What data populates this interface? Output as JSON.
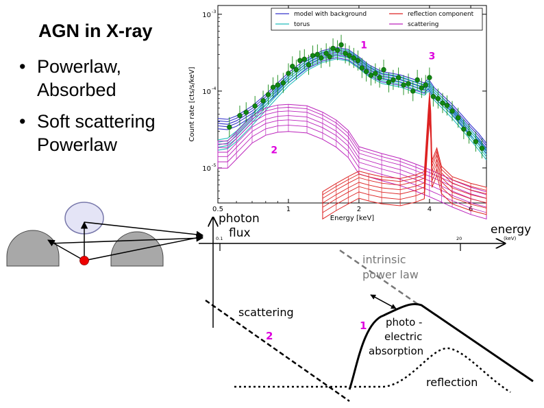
{
  "slide": {
    "title": "AGN in X-ray",
    "bullets": [
      {
        "text": "Powerlaw, Absorbed"
      },
      {
        "text": "Soft scattering Powerlaw"
      }
    ]
  },
  "chart_data": {
    "type": "line",
    "xlabel": "Energy [keV]",
    "ylabel": "Count rate [cts/s/keV]",
    "xscale": "log",
    "yscale": "log",
    "xlim": [
      0.5,
      7.0
    ],
    "ylim": [
      3.5e-06,
      0.0013
    ],
    "xticks": [
      {
        "value": 0.5,
        "label": "0.5"
      },
      {
        "value": 1,
        "label": "1"
      },
      {
        "value": 2,
        "label": "2"
      },
      {
        "value": 4,
        "label": "4"
      },
      {
        "value": 6,
        "label": "6"
      }
    ],
    "yticks": [
      {
        "value": 1e-05,
        "label": "10",
        "exp": "-5"
      },
      {
        "value": 0.0001,
        "label": "10",
        "exp": "-4"
      },
      {
        "value": 0.001,
        "label": "10",
        "exp": "-3"
      }
    ],
    "legend": {
      "placement": "top",
      "entries": [
        {
          "label": "model with background",
          "color": "#3333cc"
        },
        {
          "label": "reflection component",
          "color": "#dd2222"
        },
        {
          "label": "torus",
          "color": "#22bbbb"
        },
        {
          "label": "scattering",
          "color": "#bb22bb"
        }
      ]
    },
    "annotations": [
      {
        "text": "1",
        "x": 2.1,
        "y": 0.00036,
        "color": "#dd00dd"
      },
      {
        "text": "2",
        "x": 0.87,
        "y": 1.55e-05,
        "color": "#dd00dd"
      },
      {
        "text": "3",
        "x": 4.1,
        "y": 0.00026,
        "color": "#dd00dd"
      }
    ],
    "series": [
      {
        "name": "model with background",
        "color": "#3333cc",
        "x": [
          0.5,
          0.55,
          0.6,
          0.7,
          0.8,
          0.9,
          1.0,
          1.2,
          1.4,
          1.6,
          1.8,
          2.0,
          2.2,
          2.5,
          3.0,
          3.5,
          3.8,
          3.95,
          4.05,
          4.2,
          4.5,
          5.0,
          5.5,
          6.0,
          6.5,
          7.0
        ],
        "y": [
          3.8e-05,
          3.7e-05,
          4.1e-05,
          5.5e-05,
          7.8e-05,
          0.00011,
          0.00015,
          0.00023,
          0.00029,
          0.00032,
          0.0003,
          0.00024,
          0.00019,
          0.000155,
          0.00014,
          0.00012,
          0.00011,
          0.000125,
          0.000112,
          9.5e-05,
          7.8e-05,
          5.8e-05,
          4.2e-05,
          3.1e-05,
          2.4e-05,
          1.8e-05
        ]
      },
      {
        "name": "torus",
        "color": "#22bbbb",
        "x": [
          0.5,
          0.55,
          0.6,
          0.7,
          0.8,
          0.9,
          1.0,
          1.2,
          1.4,
          1.6,
          1.8,
          2.0,
          2.2,
          2.5,
          3.0,
          3.5,
          3.8,
          3.95,
          4.05,
          4.2,
          4.5,
          5.0,
          5.5,
          6.0,
          6.5,
          7.0
        ],
        "y": [
          2e-05,
          2.1e-05,
          2.6e-05,
          4.2e-05,
          6.6e-05,
          9.8e-05,
          0.000138,
          0.000218,
          0.000278,
          0.000308,
          0.00029,
          0.000232,
          0.000182,
          0.000148,
          0.000133,
          0.000113,
          0.000104,
          0.000118,
          0.000106,
          8.9e-05,
          7.2e-05,
          5.2e-05,
          3.7e-05,
          2.7e-05,
          2e-05,
          1.5e-05
        ]
      },
      {
        "name": "scattering",
        "color": "#bb22bb",
        "x": [
          0.5,
          0.55,
          0.6,
          0.7,
          0.8,
          0.9,
          1.0,
          1.2,
          1.4,
          1.6,
          1.8,
          2.0,
          2.5,
          3.0,
          3.5,
          4.0,
          4.5,
          5.0,
          6.0,
          7.0
        ],
        "y": [
          1.6e-05,
          1.6e-05,
          2.1e-05,
          3.4e-05,
          4.3e-05,
          4.7e-05,
          4.8e-05,
          4.6e-05,
          3.8e-05,
          3e-05,
          2.2e-05,
          1.35e-05,
          1.1e-05,
          9.5e-06,
          8e-06,
          6.8e-06,
          5.8e-06,
          5e-06,
          4e-06,
          3.5e-06
        ]
      },
      {
        "name": "reflection component",
        "color": "#dd2222",
        "x": [
          1.4,
          1.6,
          1.8,
          2.0,
          2.2,
          2.5,
          3.0,
          3.5,
          3.8,
          3.95,
          4.0,
          4.05,
          4.1,
          4.3,
          4.5,
          5.0,
          6.0,
          7.0
        ],
        "y": [
          3.5e-06,
          4.5e-06,
          5.5e-06,
          6.5e-06,
          6e-06,
          5.5e-06,
          5.2e-06,
          5.8e-06,
          6.4e-06,
          4e-05,
          6.8e-05,
          4e-05,
          9e-06,
          1.3e-05,
          7.5e-06,
          5.5e-06,
          4.5e-06,
          4e-06
        ]
      },
      {
        "name": "data",
        "color": "#118811",
        "x": [
          0.56,
          0.62,
          0.66,
          0.72,
          0.78,
          0.82,
          0.86,
          0.9,
          0.95,
          1.0,
          1.04,
          1.08,
          1.12,
          1.17,
          1.22,
          1.27,
          1.33,
          1.38,
          1.45,
          1.5,
          1.55,
          1.62,
          1.68,
          1.75,
          1.82,
          1.9,
          1.98,
          2.06,
          2.15,
          2.25,
          2.35,
          2.45,
          2.55,
          2.68,
          2.8,
          2.95,
          3.1,
          3.25,
          3.4,
          3.55,
          3.7,
          3.85,
          4.0,
          4.15,
          4.35,
          4.55,
          4.75,
          5.0,
          5.3,
          5.6,
          5.9,
          6.3,
          6.7
        ],
        "y": [
          3.4e-05,
          4.8e-05,
          5.3e-05,
          6.4e-05,
          7.5e-05,
          9e-05,
          0.000112,
          0.00012,
          0.000128,
          0.00017,
          0.00021,
          0.00019,
          0.00025,
          0.00026,
          0.00022,
          0.00029,
          0.0003,
          0.00027,
          0.00031,
          0.00028,
          0.00036,
          0.00034,
          0.0004,
          0.00031,
          0.00029,
          0.00027,
          0.00025,
          0.0002,
          0.00018,
          0.00016,
          0.00017,
          0.00015,
          0.00019,
          0.00013,
          0.00014,
          0.00015,
          0.00012,
          0.000125,
          0.0001,
          0.00014,
          0.00011,
          0.00012,
          0.00015,
          8.5e-05,
          8e-05,
          7e-05,
          6.5e-05,
          5.5e-05,
          4.5e-05,
          3.2e-05,
          2.8e-05,
          2.2e-05,
          1.8e-05
        ]
      }
    ]
  },
  "schematic": {
    "yaxis_label_line1": "photon",
    "yaxis_label_line2": "flux",
    "xaxis_label": "energy",
    "xaxis_unit": "(keV)",
    "tick_left": "0.1",
    "tick_right": "20",
    "intrinsic_line1": "intrinsic",
    "intrinsic_line2": "power law",
    "scattering_label": "scattering",
    "photo_line1": "photo -",
    "photo_line2": "electric",
    "photo_line3": "absorption",
    "reflection_label": "reflection",
    "marker_1": "1",
    "marker_2": "2"
  },
  "colors": {
    "marker": "#dd00dd",
    "model": "#3333cc",
    "torus": "#22bbbb",
    "scattering": "#bb22bb",
    "reflection": "#dd2222",
    "data": "#118811",
    "cloud_fill": "#e4e4f6",
    "cloud_stroke": "#7777aa",
    "torus_fill": "#a8a8a8",
    "source": "#ee0000"
  }
}
